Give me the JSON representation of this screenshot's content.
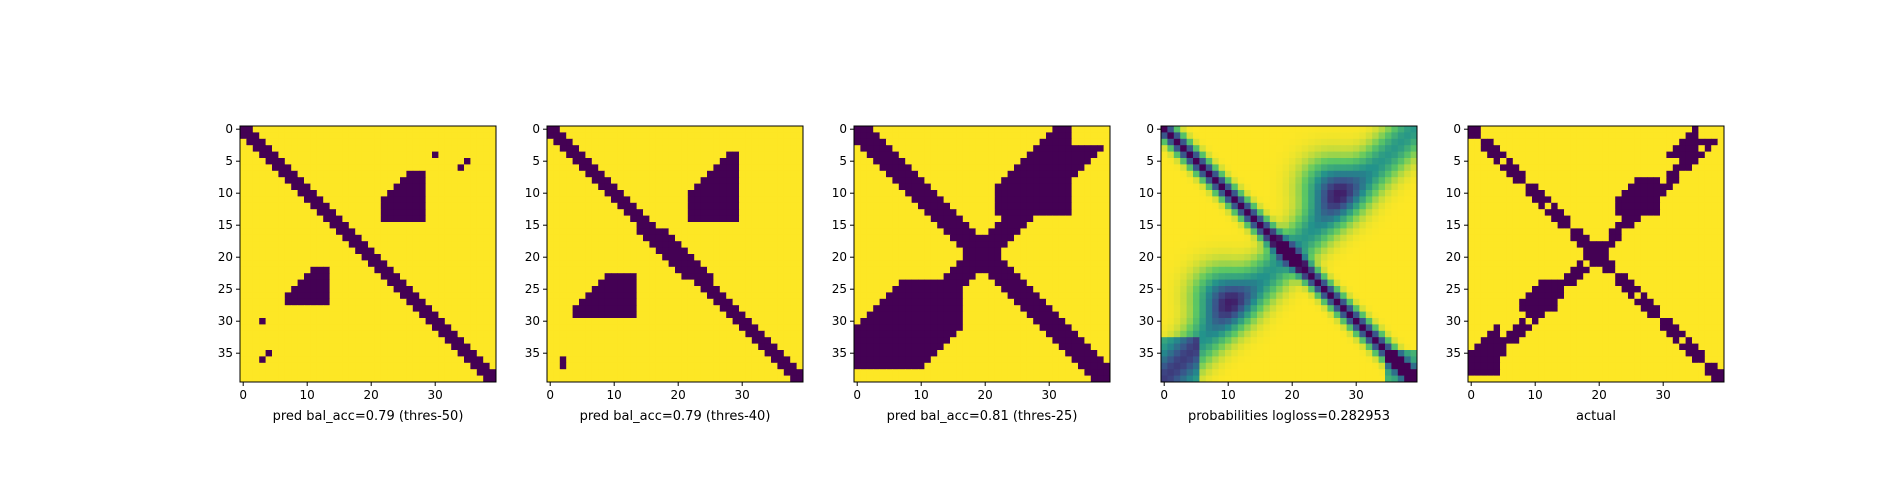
{
  "figure": {
    "colormap": [
      "#440154",
      "#3b528b",
      "#21918c",
      "#5ec962",
      "#fde725"
    ]
  },
  "chart_data": [
    {
      "type": "heatmap",
      "title": "",
      "xlabel": "pred bal_acc=0.79 (thres-50)",
      "ylabel": "",
      "grid": false,
      "size": 40,
      "xlim": [
        0,
        39
      ],
      "ylim": [
        39,
        0
      ],
      "xticks": [
        0,
        10,
        20,
        30
      ],
      "yticks": [
        0,
        5,
        10,
        15,
        20,
        25,
        30,
        35
      ],
      "values": "binary contact map; value 0 (dark purple) on the main diagonal and an anti-diagonal cluster near rows 7-14 / cols 22-28 and rows 22-27 / cols 7-13, value 1 (yellow) elsewhere"
    },
    {
      "type": "heatmap",
      "title": "",
      "xlabel": "pred bal_acc=0.79 (thres-40)",
      "ylabel": "",
      "grid": false,
      "size": 40,
      "xlim": [
        0,
        39
      ],
      "ylim": [
        39,
        0
      ],
      "xticks": [
        0,
        10,
        20,
        30
      ],
      "yticks": [
        0,
        5,
        10,
        15,
        20,
        25,
        30,
        35
      ],
      "values": "binary contact map; main diagonal plus larger anti-diagonal clusters, value 0 dark purple, 1 yellow"
    },
    {
      "type": "heatmap",
      "title": "",
      "xlabel": "pred bal_acc=0.81 (thres-25)",
      "ylabel": "",
      "grid": false,
      "size": 40,
      "xlim": [
        0,
        39
      ],
      "ylim": [
        39,
        0
      ],
      "xticks": [
        0,
        10,
        20,
        30
      ],
      "yticks": [
        0,
        5,
        10,
        15,
        20,
        25,
        30,
        35
      ],
      "values": "binary contact map; thick main diagonal and thick anti-diagonal forming an X, value 0 dark purple, 1 yellow"
    },
    {
      "type": "heatmap",
      "title": "",
      "xlabel": "probabilities logloss=0.282953",
      "ylabel": "",
      "grid": false,
      "size": 40,
      "xlim": [
        0,
        39
      ],
      "ylim": [
        39,
        0
      ],
      "xticks": [
        0,
        10,
        20,
        30
      ],
      "yticks": [
        0,
        5,
        10,
        15,
        20,
        25,
        30,
        35
      ],
      "values": "continuous probability map with viridis colors; dark main diagonal, green/teal anti-diagonal blobs, yellow background"
    },
    {
      "type": "heatmap",
      "title": "",
      "xlabel": "actual",
      "ylabel": "",
      "grid": false,
      "size": 40,
      "xlim": [
        0,
        39
      ],
      "ylim": [
        39,
        0
      ],
      "xticks": [
        0,
        10,
        20,
        30
      ],
      "yticks": [
        0,
        5,
        10,
        15,
        20,
        25,
        30,
        35
      ],
      "values": "binary ground-truth contact map forming an X of dark purple cells on yellow"
    }
  ]
}
